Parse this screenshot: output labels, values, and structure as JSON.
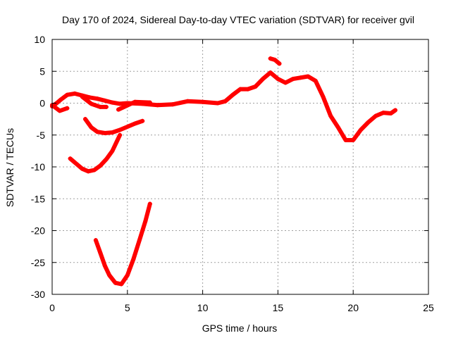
{
  "chart_data": {
    "type": "scatter",
    "title": "Day 170 of 2024, Sidereal Day-to-day VTEC variation (SDTVAR) for receiver gvil",
    "xlabel": "GPS time / hours",
    "ylabel": "SDTVAR / TECUs",
    "xlim": [
      0,
      25
    ],
    "ylim": [
      -30,
      10
    ],
    "xticks": [
      0,
      5,
      10,
      15,
      20,
      25
    ],
    "yticks": [
      -30,
      -25,
      -20,
      -15,
      -10,
      -5,
      0,
      5,
      10
    ],
    "grid": true,
    "legend": "none",
    "series_color": "#ff0000",
    "series": [
      {
        "name": "main",
        "x": [
          0,
          0.3,
          0.6,
          1.0,
          1.5,
          2.0,
          2.5,
          3.0,
          3.5,
          4.0,
          4.5,
          5.0,
          6.0,
          7.0,
          8.0,
          9.0,
          10.0,
          11.0,
          11.5,
          12.0,
          12.5,
          13.0,
          13.5,
          14.0,
          14.5,
          15.0,
          15.5,
          16.0,
          16.5,
          17.0,
          17.5,
          18.0,
          18.5,
          19.0,
          19.5,
          20.0,
          20.5,
          21.0,
          21.5,
          22.0,
          22.5,
          22.8
        ],
        "y": [
          -0.5,
          0.0,
          0.6,
          1.3,
          1.5,
          1.2,
          0.9,
          0.7,
          0.4,
          0.1,
          -0.1,
          0.0,
          -0.1,
          -0.3,
          -0.2,
          0.3,
          0.2,
          0.0,
          0.3,
          1.3,
          2.2,
          2.2,
          2.6,
          3.8,
          4.8,
          3.8,
          3.2,
          3.8,
          4.0,
          4.2,
          3.5,
          1.0,
          -2.0,
          -3.8,
          -5.8,
          -5.8,
          -4.2,
          -3.0,
          -2.0,
          -1.5,
          -1.6,
          -1.1
        ]
      },
      {
        "name": "spike",
        "x": [
          14.5,
          14.8,
          15.1
        ],
        "y": [
          7.0,
          6.8,
          6.2
        ]
      },
      {
        "name": "early-dip",
        "x": [
          0,
          0.5,
          1.0
        ],
        "y": [
          -0.3,
          -1.2,
          -0.8
        ]
      },
      {
        "name": "branch-a",
        "x": [
          2.0,
          2.6,
          3.2,
          3.6
        ],
        "y": [
          1.0,
          -0.1,
          -0.6,
          -0.6
        ]
      },
      {
        "name": "branch-b",
        "x": [
          4.4,
          5.5,
          6.5
        ],
        "y": [
          -1.0,
          0.2,
          0.1
        ]
      },
      {
        "name": "arc-1",
        "x": [
          2.2,
          2.6,
          3.0,
          3.5,
          4.0,
          4.5,
          5.0,
          5.5,
          6.0
        ],
        "y": [
          -2.5,
          -3.8,
          -4.5,
          -4.7,
          -4.6,
          -4.2,
          -3.7,
          -3.2,
          -2.8
        ]
      },
      {
        "name": "arc-2",
        "x": [
          1.2,
          1.6,
          2.0,
          2.4,
          2.8,
          3.2,
          3.6,
          4.0,
          4.5
        ],
        "y": [
          -8.7,
          -9.5,
          -10.3,
          -10.7,
          -10.5,
          -9.8,
          -8.8,
          -7.5,
          -5.0
        ]
      },
      {
        "name": "arc-3",
        "x": [
          2.9,
          3.2,
          3.5,
          3.8,
          4.2,
          4.6,
          5.0,
          5.4,
          5.8,
          6.2,
          6.5
        ],
        "y": [
          -21.5,
          -23.5,
          -25.5,
          -27.0,
          -28.2,
          -28.4,
          -27.0,
          -24.5,
          -21.5,
          -18.5,
          -15.8
        ]
      }
    ]
  }
}
